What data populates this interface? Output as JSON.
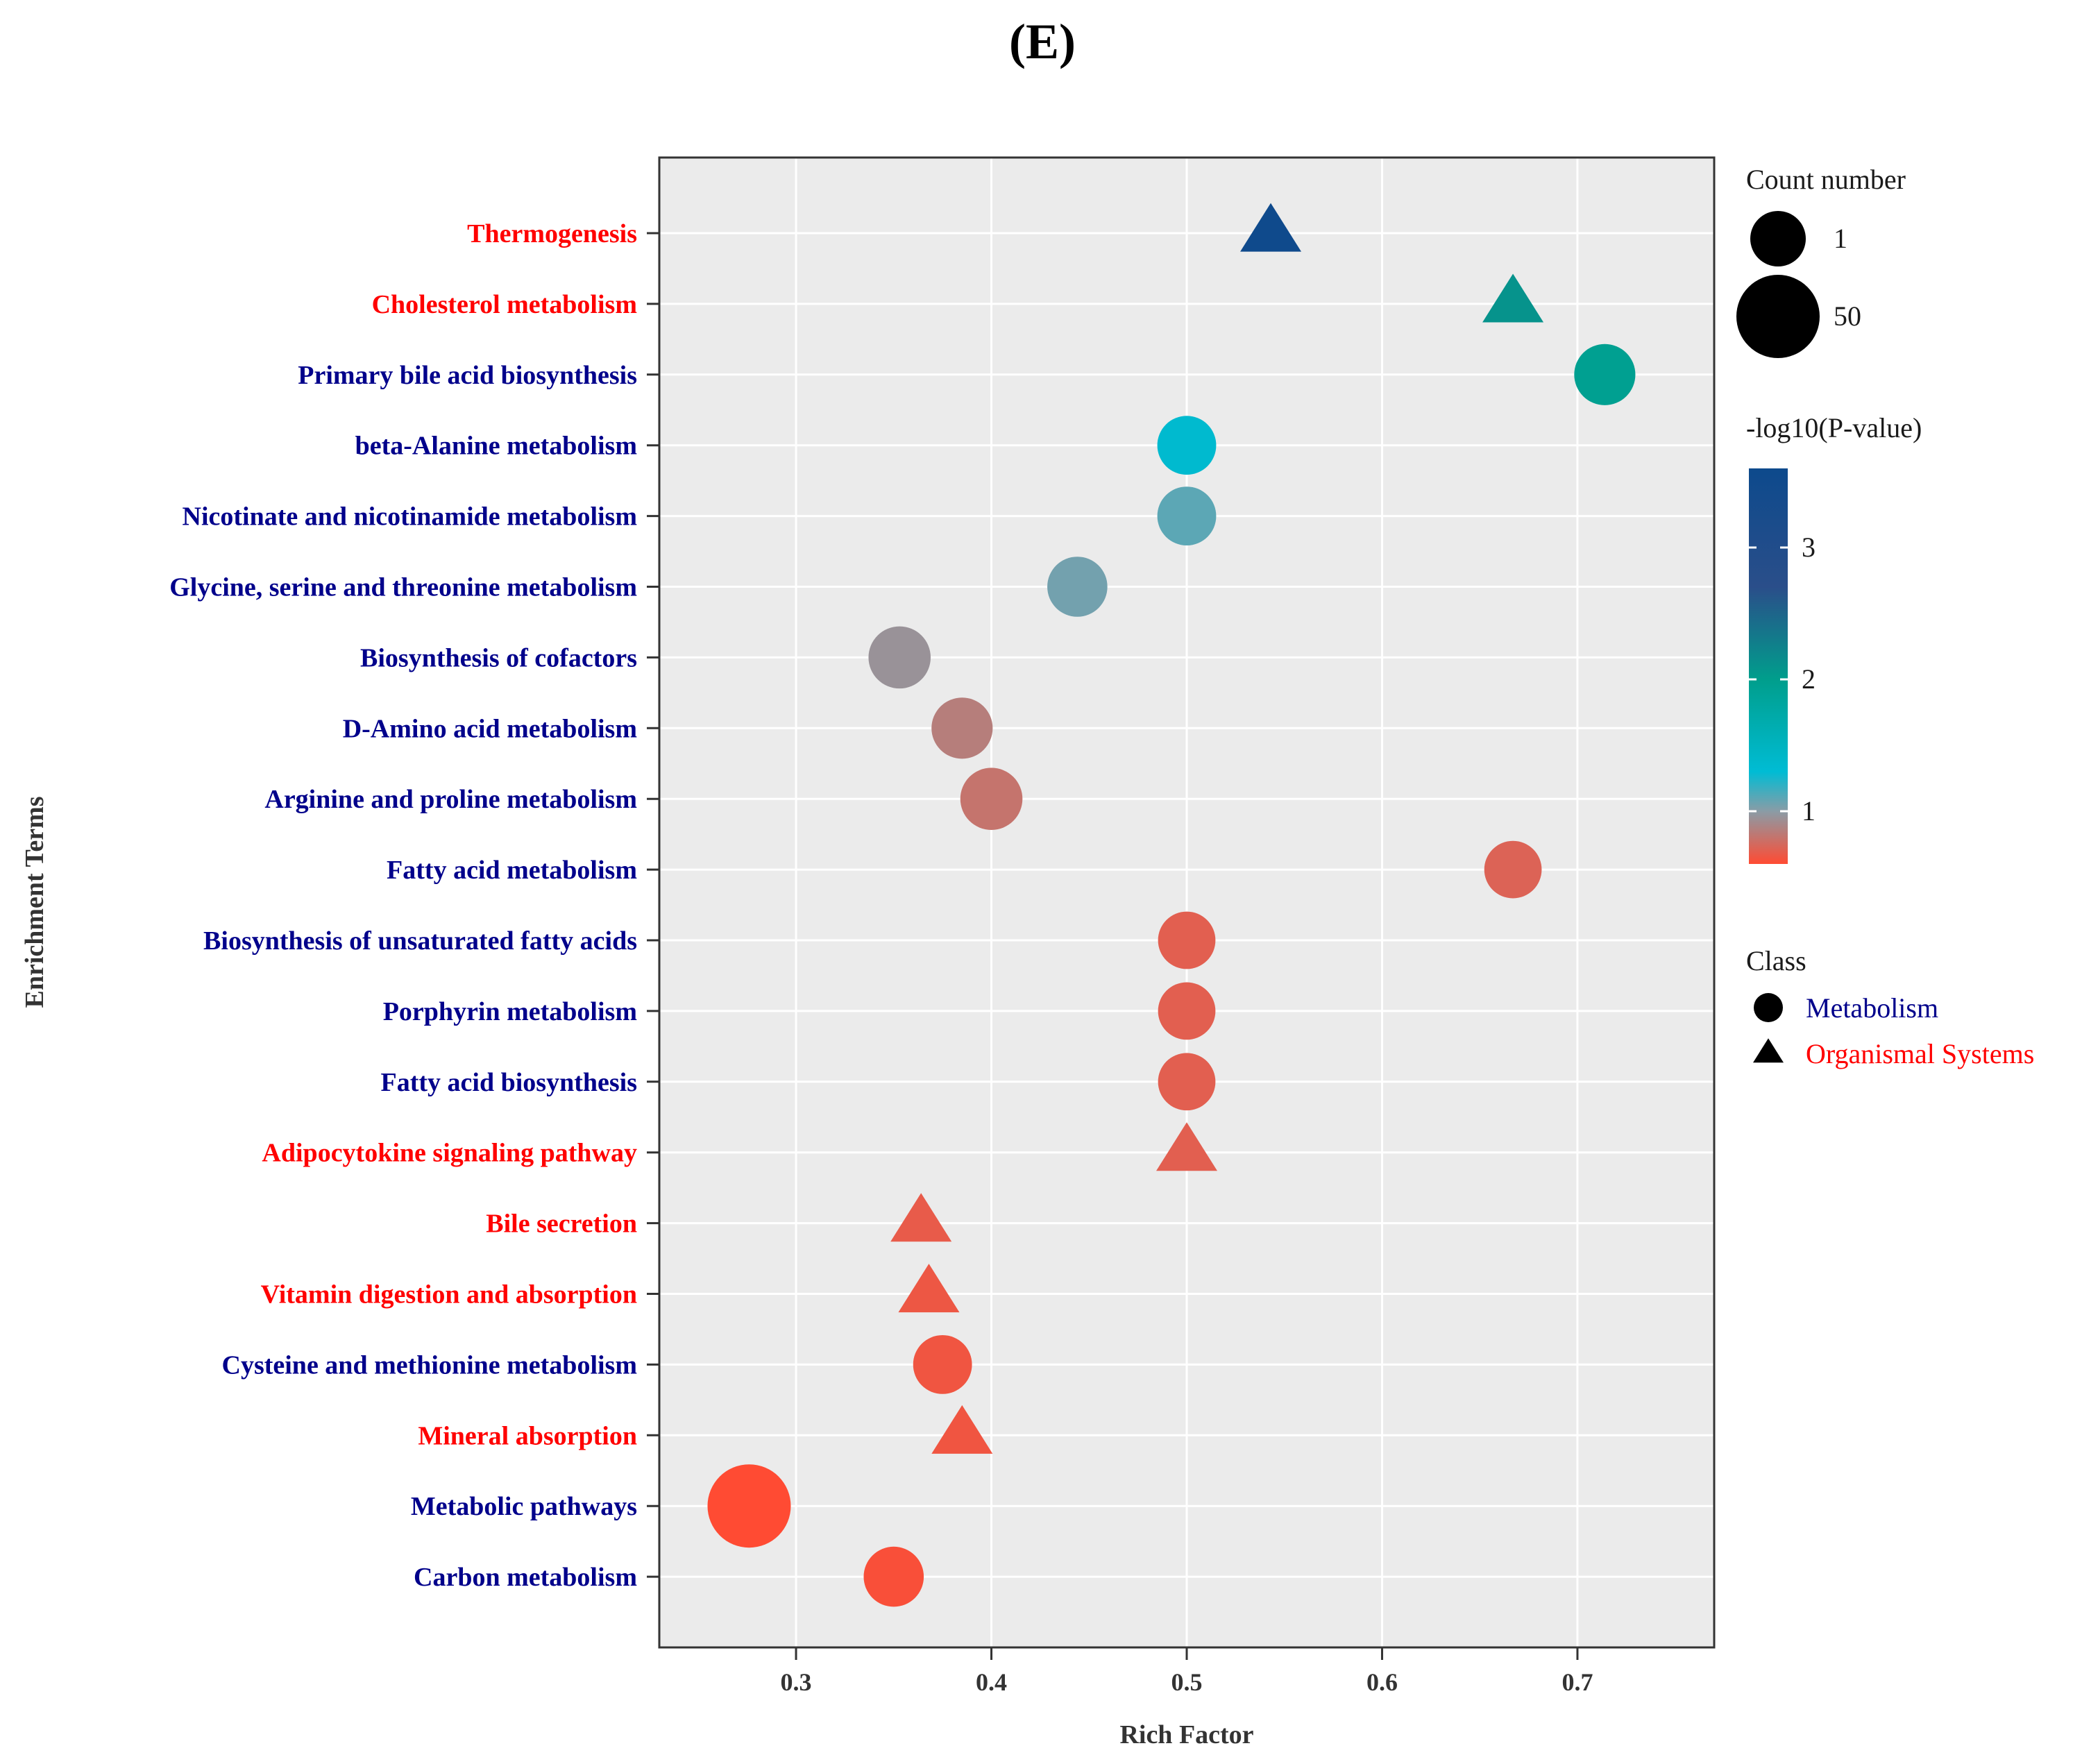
{
  "chart_data": {
    "type": "scatter",
    "panel_label": "(E)",
    "xlabel": "Rich Factor",
    "ylabel": "Enrichment Terms",
    "xlim": [
      0.23,
      0.77
    ],
    "xticks": [
      0.3,
      0.4,
      0.5,
      0.6,
      0.7
    ],
    "xtick_labels": [
      "0.3",
      "0.4",
      "0.5",
      "0.6",
      "0.7"
    ],
    "grid": true,
    "colors": {
      "panel_bg": "#EBEBEB",
      "grid": "#FFFFFF",
      "metabolism_label": "#00008B",
      "organismal_label": "#FF0000",
      "axis": "#333333"
    },
    "points": [
      {
        "term": "Thermogenesis",
        "class": "Organismal Systems",
        "rich_factor": 0.543,
        "neg_log10_p": 3.55,
        "count": 1
      },
      {
        "term": "Cholesterol metabolism",
        "class": "Organismal Systems",
        "rich_factor": 0.667,
        "neg_log10_p": 2.1,
        "count": 1
      },
      {
        "term": "Primary bile acid biosynthesis",
        "class": "Metabolism",
        "rich_factor": 0.714,
        "neg_log10_p": 1.95,
        "count": 5
      },
      {
        "term": "beta-Alanine metabolism",
        "class": "Metabolism",
        "rich_factor": 0.5,
        "neg_log10_p": 1.35,
        "count": 3
      },
      {
        "term": "Nicotinate and nicotinamide metabolism",
        "class": "Metabolism",
        "rich_factor": 0.5,
        "neg_log10_p": 1.1,
        "count": 3
      },
      {
        "term": "Glycine, serine and threonine metabolism",
        "class": "Metabolism",
        "rich_factor": 0.444,
        "neg_log10_p": 1.05,
        "count": 4
      },
      {
        "term": "Biosynthesis of cofactors",
        "class": "Metabolism",
        "rich_factor": 0.353,
        "neg_log10_p": 0.95,
        "count": 6
      },
      {
        "term": "D-Amino acid metabolism",
        "class": "Metabolism",
        "rich_factor": 0.385,
        "neg_log10_p": 0.85,
        "count": 5
      },
      {
        "term": "Arginine and proline metabolism",
        "class": "Metabolism",
        "rich_factor": 0.4,
        "neg_log10_p": 0.8,
        "count": 6
      },
      {
        "term": "Fatty acid metabolism",
        "class": "Metabolism",
        "rich_factor": 0.667,
        "neg_log10_p": 0.72,
        "count": 2
      },
      {
        "term": "Biosynthesis of unsaturated fatty acids",
        "class": "Metabolism",
        "rich_factor": 0.5,
        "neg_log10_p": 0.7,
        "count": 2
      },
      {
        "term": "Porphyrin metabolism",
        "class": "Metabolism",
        "rich_factor": 0.5,
        "neg_log10_p": 0.7,
        "count": 2
      },
      {
        "term": "Fatty acid biosynthesis",
        "class": "Metabolism",
        "rich_factor": 0.5,
        "neg_log10_p": 0.7,
        "count": 2
      },
      {
        "term": "Adipocytokine signaling pathway",
        "class": "Organismal Systems",
        "rich_factor": 0.5,
        "neg_log10_p": 0.7,
        "count": 1
      },
      {
        "term": "Bile secretion",
        "class": "Organismal Systems",
        "rich_factor": 0.364,
        "neg_log10_p": 0.68,
        "count": 1
      },
      {
        "term": "Vitamin digestion and absorption",
        "class": "Organismal Systems",
        "rich_factor": 0.368,
        "neg_log10_p": 0.66,
        "count": 1
      },
      {
        "term": "Cysteine and methionine metabolism",
        "class": "Metabolism",
        "rich_factor": 0.375,
        "neg_log10_p": 0.65,
        "count": 3
      },
      {
        "term": "Mineral absorption",
        "class": "Organismal Systems",
        "rich_factor": 0.385,
        "neg_log10_p": 0.65,
        "count": 1
      },
      {
        "term": "Metabolic pathways",
        "class": "Metabolism",
        "rich_factor": 0.276,
        "neg_log10_p": 0.6,
        "count": 50
      },
      {
        "term": "Carbon metabolism",
        "class": "Metabolism",
        "rich_factor": 0.35,
        "neg_log10_p": 0.62,
        "count": 4
      }
    ],
    "legend": {
      "size_title": "Count number",
      "size_values": [
        1,
        50
      ],
      "size_labels": [
        "1",
        "50"
      ],
      "color_title": "-log10(P-value)",
      "color_range": [
        0.6,
        3.6
      ],
      "color_ticks": [
        1,
        2,
        3
      ],
      "color_tick_labels": [
        "1",
        "2",
        "3"
      ],
      "color_stops": [
        {
          "value": 0.6,
          "color": "#FF4B33"
        },
        {
          "value": 1.0,
          "color": "#8A9CA6"
        },
        {
          "value": 1.3,
          "color": "#00BCD4"
        },
        {
          "value": 2.0,
          "color": "#009E8C"
        },
        {
          "value": 2.7,
          "color": "#2A4E8A"
        },
        {
          "value": 3.6,
          "color": "#0D4A8C"
        }
      ],
      "class_title": "Class",
      "class_items": [
        {
          "label": "Metabolism",
          "shape": "circle"
        },
        {
          "label": "Organismal Systems",
          "shape": "triangle"
        }
      ]
    }
  }
}
